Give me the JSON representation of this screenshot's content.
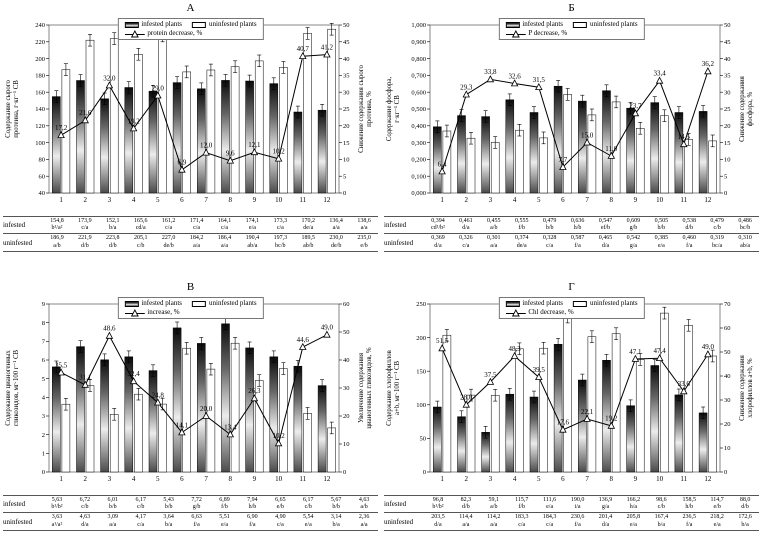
{
  "colors": {
    "background": "#ffffff",
    "bar_outline": "#000000",
    "line_color": "#000000"
  },
  "chart_data": [
    {
      "type": "bar",
      "title": "А",
      "legend": {
        "infested": "infested plants",
        "uninfested": "uninfested plants",
        "line": "protein decrease, %"
      },
      "categories": [
        "1",
        "2",
        "3",
        "4",
        "5",
        "6",
        "7",
        "8",
        "9",
        "10",
        "11",
        "12"
      ],
      "y_left": {
        "label_lines": [
          "Содержание сырого",
          "протеина, г·кг⁻¹ СВ"
        ],
        "min": 40,
        "max": 240,
        "ticks": [
          40,
          60,
          80,
          100,
          120,
          140,
          160,
          180,
          200,
          220,
          240
        ],
        "tick_labels": [
          "40",
          "60",
          "80",
          "100",
          "120",
          "140",
          "160",
          "180",
          "200",
          "220",
          "240"
        ]
      },
      "y_right": {
        "label_lines": [
          "Снижение содержания сырого",
          "протеина, %"
        ],
        "min": 0,
        "max": 50,
        "ticks": [
          0,
          5,
          10,
          15,
          20,
          25,
          30,
          35,
          40,
          45,
          50
        ],
        "tick_labels": [
          "0",
          "5",
          "10",
          "15",
          "20",
          "25",
          "30",
          "35",
          "40",
          "45",
          "50"
        ]
      },
      "series": [
        {
          "name": "infested plants",
          "row_label": "infested",
          "values": [
            154.8,
            173.9,
            152.1,
            165.6,
            161.2,
            171.4,
            164.1,
            174.1,
            173.3,
            170.2,
            136.4,
            138.6
          ],
          "value_labels": [
            "154,8",
            "173,9",
            "152,1",
            "165,6",
            "161,2",
            "171,4",
            "164,1",
            "174,1",
            "173,3",
            "170,2",
            "136,4",
            "138,6"
          ],
          "codes": [
            "b¹/a²",
            "c/a",
            "b/a",
            "cd/a",
            "c/a",
            "c/a",
            "c/a",
            "e/a",
            "c/a",
            "de/a",
            "a/a",
            "a/a"
          ]
        },
        {
          "name": "uninfested plants",
          "row_label": "uninfested",
          "values": [
            186.9,
            221.9,
            223.8,
            205.1,
            227.0,
            184.2,
            186.4,
            190.4,
            197.3,
            189.5,
            230.0,
            235.0
          ],
          "value_labels": [
            "186,9",
            "221,9",
            "223,8",
            "205,1",
            "227,0",
            "184,2",
            "186,4",
            "190,4",
            "197,3",
            "189,5",
            "230,0",
            "235,0"
          ],
          "codes": [
            "a/b",
            "d/b",
            "d/b",
            "c/b",
            "de/b",
            "a/a",
            "a/a",
            "ab/a",
            "bc/b",
            "ab/b",
            "de/b",
            "e/b"
          ]
        }
      ],
      "line": {
        "name": "protein decrease, %",
        "values": [
          17.2,
          21.6,
          32.0,
          19.2,
          29.0,
          6.9,
          12.0,
          9.6,
          12.1,
          10.2,
          40.7,
          41.2
        ],
        "value_labels": [
          "17,2",
          "21,6",
          "32,0",
          "19,2",
          "29,0",
          "6,9",
          "12,0",
          "9,6",
          "12,1",
          "10,2",
          "40,7",
          "41,2"
        ]
      }
    },
    {
      "type": "bar",
      "title": "Б",
      "legend": {
        "infested": "infested plants",
        "uninfested": "uninfested plants",
        "line": "P decrease, %"
      },
      "categories": [
        "1",
        "2",
        "3",
        "4",
        "5",
        "6",
        "7",
        "8",
        "9",
        "10",
        "11",
        "12"
      ],
      "y_left": {
        "label_lines": [
          "Содержание фосфора,",
          "г·кг⁻¹ СВ"
        ],
        "min": 0,
        "max": 1.0,
        "ticks": [
          0,
          0.1,
          0.2,
          0.3,
          0.4,
          0.5,
          0.6,
          0.7,
          0.8,
          0.9,
          1.0
        ],
        "tick_labels": [
          "0,000",
          "0,100",
          "0,200",
          "0,300",
          "0,400",
          "0,500",
          "0,600",
          "0,700",
          "0,800",
          "0,900",
          "1,000"
        ]
      },
      "y_right": {
        "label_lines": [
          "Снижение содержания",
          "фосфора, %"
        ],
        "min": 0,
        "max": 50,
        "ticks": [
          0,
          5,
          10,
          15,
          20,
          25,
          30,
          35,
          40,
          45,
          50
        ],
        "tick_labels": [
          "0",
          "5",
          "10",
          "15",
          "20",
          "25",
          "30",
          "35",
          "40",
          "45",
          "50"
        ]
      },
      "series": [
        {
          "name": "infested plants",
          "row_label": "infested",
          "values": [
            0.394,
            0.461,
            0.455,
            0.555,
            0.479,
            0.636,
            0.547,
            0.609,
            0.505,
            0.538,
            0.479,
            0.486
          ],
          "value_labels": [
            "0,394",
            "0,461",
            "0,455",
            "0,555",
            "0,479",
            "0,636",
            "0,547",
            "0,609",
            "0,505",
            "0,538",
            "0,479",
            "0,486"
          ],
          "codes": [
            "cd¹/b²",
            "d/a",
            "a/b",
            "f/b",
            "b/b",
            "h/b",
            "ef/b",
            "g/b",
            "b/b",
            "d/b",
            "c/b",
            "bc/b"
          ]
        },
        {
          "name": "uninfested plants",
          "row_label": "uninfested",
          "values": [
            0.369,
            0.326,
            0.301,
            0.374,
            0.328,
            0.587,
            0.465,
            0.542,
            0.385,
            0.46,
            0.319,
            0.31
          ],
          "value_labels": [
            "0,369",
            "0,326",
            "0,301",
            "0,374",
            "0,328",
            "0,587",
            "0,465",
            "0,542",
            "0,385",
            "0,460",
            "0,319",
            "0,310"
          ],
          "codes": [
            "d/a",
            "c/a",
            "a/a",
            "de/a",
            "c/a",
            "f/a",
            "d/a",
            "g/a",
            "e/a",
            "f/a",
            "bc/a",
            "ab/a"
          ]
        }
      ],
      "line": {
        "name": "P decrease, %",
        "values": [
          6.4,
          29.3,
          33.8,
          32.6,
          31.5,
          7.7,
          15.0,
          11.0,
          23.7,
          33.4,
          14.5,
          36.2
        ],
        "value_labels": [
          "6,4",
          "29,3",
          "33,8",
          "32,6",
          "31,5",
          "7,7",
          "15,0",
          "11,0",
          "23,7",
          "33,4",
          "14,5",
          "36,2"
        ]
      }
    },
    {
      "type": "bar",
      "title": "В",
      "legend": {
        "infested": "infested plants",
        "uninfested": "uninfested plants",
        "line": "increase, %"
      },
      "categories": [
        "1",
        "2",
        "3",
        "4",
        "5",
        "6",
        "7",
        "8",
        "9",
        "10",
        "11",
        "12"
      ],
      "y_left": {
        "label_lines": [
          "Содержание цианогенных",
          "гликозидов, мг·100 г⁻¹ СВ"
        ],
        "min": 0,
        "max": 9,
        "ticks": [
          0,
          1,
          2,
          3,
          4,
          5,
          6,
          7,
          8,
          9
        ],
        "tick_labels": [
          "0",
          "1",
          "2",
          "3",
          "4",
          "5",
          "6",
          "7",
          "8",
          "9"
        ]
      },
      "y_right": {
        "label_lines": [
          "Увеличение содержания",
          "цианогенных гликозидов, %"
        ],
        "min": 0,
        "max": 60,
        "ticks": [
          0,
          10,
          20,
          30,
          40,
          50,
          60
        ],
        "tick_labels": [
          "0",
          "10",
          "20",
          "30",
          "40",
          "50",
          "60"
        ]
      },
      "series": [
        {
          "name": "infested plants",
          "row_label": "infested",
          "values": [
            5.63,
            6.72,
            6.01,
            6.17,
            5.43,
            7.72,
            6.89,
            7.94,
            6.65,
            6.17,
            5.67,
            4.63
          ],
          "value_labels": [
            "5,63",
            "6,72",
            "6,01",
            "6,17",
            "5,43",
            "7,72",
            "6,89",
            "7,94",
            "6,65",
            "6,17",
            "5,67",
            "4,63"
          ],
          "codes": [
            "b¹/b²",
            "c/b",
            "b/b",
            "c/b",
            "b/b",
            "g/b",
            "f/b",
            "h/b",
            "e/b",
            "c/b",
            "b/b",
            "a/b"
          ]
        },
        {
          "name": "uninfested plants",
          "row_label": "uninfested",
          "values": [
            3.63,
            4.63,
            3.09,
            4.17,
            3.64,
            6.63,
            5.51,
            6.9,
            4.9,
            5.54,
            3.14,
            2.36
          ],
          "value_labels": [
            "3,63",
            "4,63",
            "3,09",
            "4,17",
            "3,64",
            "6,63",
            "5,51",
            "6,90",
            "4,90",
            "5,54",
            "3,14",
            "2,36"
          ],
          "codes": [
            "a¹/a²",
            "d/a",
            "a/a",
            "c/a",
            "b/a",
            "f/a",
            "e/a",
            "f/a",
            "c/a",
            "e/a",
            "b/a",
            "a/a"
          ]
        }
      ],
      "line": {
        "name": "increase, %",
        "values": [
          35.5,
          31.1,
          48.6,
          32.4,
          24.8,
          14.1,
          20.0,
          13.4,
          26.3,
          10.2,
          44.6,
          49.0
        ],
        "value_labels": [
          "35,5",
          "31,1",
          "48,6",
          "32,4",
          "24,8",
          "14,1",
          "20,0",
          "13,4",
          "26,3",
          "10,2",
          "44,6",
          "49,0"
        ]
      }
    },
    {
      "type": "bar",
      "title": "Г",
      "legend": {
        "infested": "infested plants",
        "uninfested": "uninfested plants",
        "line": "Chl decrease, %"
      },
      "categories": [
        "1",
        "2",
        "3",
        "4",
        "5",
        "6",
        "7",
        "8",
        "9",
        "10",
        "11",
        "12"
      ],
      "y_left": {
        "label_lines": [
          "Содержание хлорофиллов",
          "a+b, мг·100 г⁻¹ СВ"
        ],
        "min": 0,
        "max": 250,
        "ticks": [
          0,
          50,
          100,
          150,
          200,
          250
        ],
        "tick_labels": [
          "0",
          "50",
          "100",
          "150",
          "200",
          "250"
        ]
      },
      "y_right": {
        "label_lines": [
          "Снижение содержания",
          "хлорофиллов a+b, %"
        ],
        "min": 0,
        "max": 70,
        "ticks": [
          0,
          10,
          20,
          30,
          40,
          50,
          60,
          70
        ],
        "tick_labels": [
          "0",
          "10",
          "20",
          "30",
          "40",
          "50",
          "60",
          "70"
        ]
      },
      "series": [
        {
          "name": "infested plants",
          "row_label": "infested",
          "values": [
            96.8,
            82.3,
            59.1,
            115.7,
            111.6,
            190.0,
            136.9,
            166.2,
            98.6,
            158.5,
            114.7,
            88.0
          ],
          "value_labels": [
            "96,8",
            "82,3",
            "59,1",
            "115,7",
            "111,6",
            "190,0",
            "136,9",
            "166,2",
            "98,6",
            "158,5",
            "114,7",
            "88,0"
          ],
          "codes": [
            "b¹/b²",
            "d/b",
            "a/b",
            "f/b",
            "e/a",
            "i/a",
            "g/a",
            "h/a",
            "c/b",
            "h/b",
            "e/b",
            "d/b"
          ]
        },
        {
          "name": "uninfested plants",
          "row_label": "uninfested",
          "values": [
            203.5,
            114.4,
            114.2,
            183.3,
            184.3,
            230.6,
            201.4,
            205.8,
            167.4,
            236.5,
            218.2,
            172.6
          ],
          "value_labels": [
            "203,5",
            "114,4",
            "114,2",
            "183,3",
            "184,3",
            "230,6",
            "201,4",
            "205,8",
            "167,4",
            "236,5",
            "218,2",
            "172,6"
          ],
          "codes": [
            "d/a",
            "a/a",
            "a/a",
            "c/a",
            "c/a",
            "f/a",
            "d/a",
            "e/a",
            "b/a",
            "f/a",
            "e/a",
            "b/a"
          ]
        }
      ],
      "line": {
        "name": "Chl decrease, %",
        "values": [
          51.5,
          28.0,
          37.5,
          48.3,
          39.5,
          17.6,
          22.1,
          19.2,
          47.1,
          47.4,
          33.6,
          49.0
        ],
        "value_labels": [
          "51,5",
          "28,0",
          "37,5",
          "48,3",
          "39,5",
          "17,6",
          "22,1",
          "19,2",
          "47,1",
          "47,4",
          "33,6",
          "49,0"
        ]
      }
    }
  ]
}
